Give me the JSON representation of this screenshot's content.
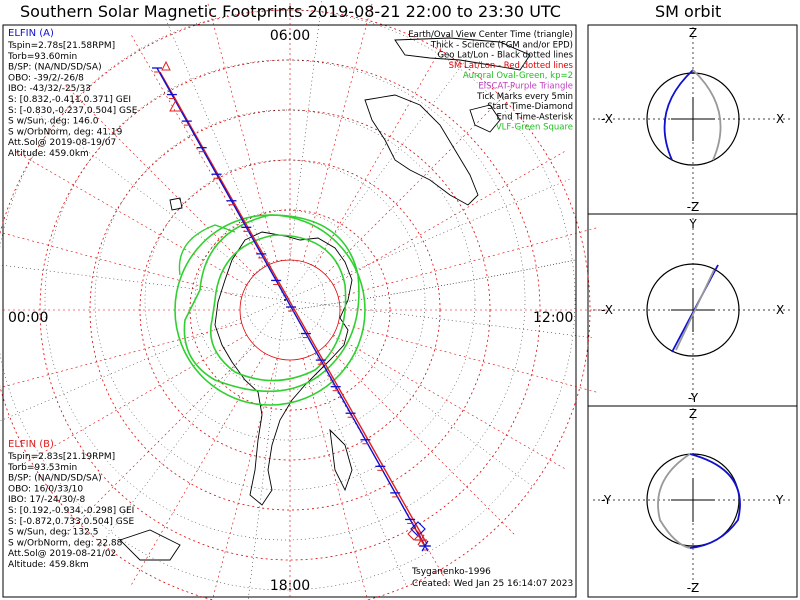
{
  "title": "Southern Solar Magnetic Footprints 2019-08-21 22:00 to 23:30 UTC",
  "orbit_title": "SM orbit",
  "clock_labels": {
    "top": "06:00",
    "left": "00:00",
    "right": "12:00",
    "bottom": "18:00"
  },
  "elfin_a": {
    "name": "ELFIN (A)",
    "color": "#1010d0",
    "lines": [
      "Tspin=2.78s[21.58RPM]",
      "Torb=93.60min",
      "B/SP: (NA/ND/SD/SA)",
      "OBO: -39/2/-26/8",
      "IBO: -43/32/-25/33",
      "S: [0.832,-0.411,0.371] GEI",
      "S: [-0.830,-0.237,0.504] GSE",
      "S w/Sun, deg: 146.0",
      "S w/OrbNorm, deg: 41.19",
      "Att.Sol@ 2019-08-19/07",
      "Altitude: 459.0km"
    ]
  },
  "elfin_b": {
    "name": "ELFIN (B)",
    "color": "#e02020",
    "lines": [
      "Tspin=2.83s[21.19RPM]",
      "Torb=93.53min",
      "B/SP: (NA/ND/SD/SA)",
      "OBO: 16/0/33/10",
      "IBO: 17/-24/30/-8",
      "S: [0.192,-0.934,-0.298] GEI",
      "S: [-0.872,0.733,0.504] GSE",
      "S w/Sun, deg: 132.5",
      "S w/OrbNorm, deg: 22.88",
      "Att.Sol@ 2019-08-21/02",
      "Altitude: 459.8km"
    ]
  },
  "legend": [
    {
      "text": "Earth/Oval View Center Time (triangle)",
      "color": "#000000"
    },
    {
      "text": "Thick - Science (FGM and/or EPD)",
      "color": "#000000"
    },
    {
      "text": "Geo Lat/Lon - Black dotted lines",
      "color": "#000000"
    },
    {
      "text": "SM Lat/Lon - Red dotted lines",
      "color": "#e00000"
    },
    {
      "text": "Auroral Oval-Green, kp=2",
      "color": "#20c020"
    },
    {
      "text": "EISCAT-Purple Triangle",
      "color": "#c040c0"
    },
    {
      "text": "Tick Marks every 5min",
      "color": "#000000"
    },
    {
      "text": "Start Time-Diamond",
      "color": "#000000"
    },
    {
      "text": "End Time-Asterisk",
      "color": "#000000"
    },
    {
      "text": "VLF-Green Square",
      "color": "#20c020"
    }
  ],
  "credit": "Tsyganenko-1996",
  "created": "Created: Wed Jan 25 16:14:07 2023",
  "orbit_panels": [
    {
      "top": "Z",
      "bottom": "-Z",
      "left": "-X",
      "right": "X"
    },
    {
      "top": "Y",
      "bottom": "-Y",
      "left": "-X",
      "right": "X"
    },
    {
      "top": "Z",
      "bottom": "-Z",
      "left": "-Y",
      "right": "Y"
    }
  ],
  "colors": {
    "sm_grid": "#e00000",
    "geo_grid": "#000000",
    "oval": "#30d030",
    "track_a": "#1010d0",
    "track_b": "#e02020"
  },
  "chart_data": {
    "type": "scatter",
    "projection": "polar (southern hemisphere, SM coordinates)",
    "series": [
      {
        "name": "ELFIN (A)",
        "description": "footprint track",
        "start": "22:00",
        "end": "23:30"
      },
      {
        "name": "ELFIN (B)",
        "description": "footprint track",
        "start": "22:00",
        "end": "23:30"
      }
    ],
    "grid": true
  }
}
